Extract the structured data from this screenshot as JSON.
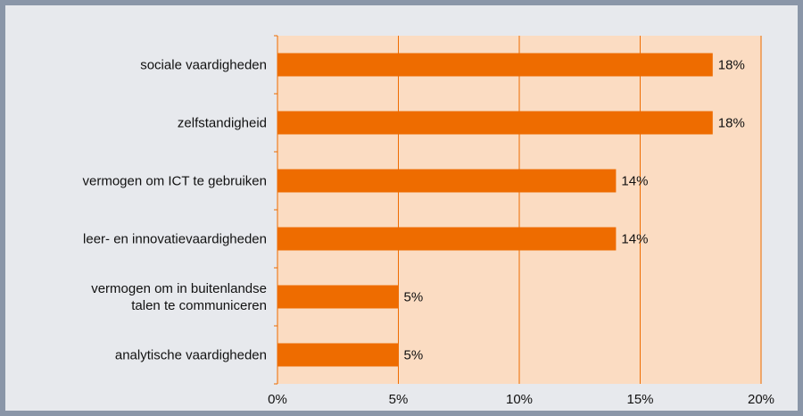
{
  "chart_data": {
    "type": "bar",
    "orientation": "horizontal",
    "categories": [
      "sociale vaardigheden",
      "zelfstandigheid",
      "vermogen om ICT te gebruiken",
      "leer- en innovatievaardigheden",
      "vermogen om in buitenlandse talen te communiceren",
      "analytische vaardigheden"
    ],
    "category_lines": [
      [
        "sociale vaardigheden"
      ],
      [
        "zelfstandigheid"
      ],
      [
        "vermogen om ICT te gebruiken"
      ],
      [
        "leer- en innovatievaardigheden"
      ],
      [
        "vermogen om in buitenlandse",
        "talen te communiceren"
      ],
      [
        "analytische vaardigheden"
      ]
    ],
    "values": [
      18,
      18,
      14,
      14,
      5,
      5
    ],
    "value_labels": [
      "18%",
      "18%",
      "14%",
      "14%",
      "5%",
      "5%"
    ],
    "xlim": [
      0,
      20
    ],
    "x_ticks": [
      0,
      5,
      10,
      15,
      20
    ],
    "x_tick_labels": [
      "0%",
      "5%",
      "10%",
      "15%",
      "20%"
    ],
    "grid": "vertical",
    "legend": "none",
    "title": "",
    "xlabel": "",
    "ylabel": ""
  },
  "colors": {
    "bar": "#ee6c00",
    "plot_background": "#fbdcc2",
    "gridline": "#ee6c00",
    "frame_border": "#8a96a8",
    "frame_background": "#e7e9ed"
  }
}
